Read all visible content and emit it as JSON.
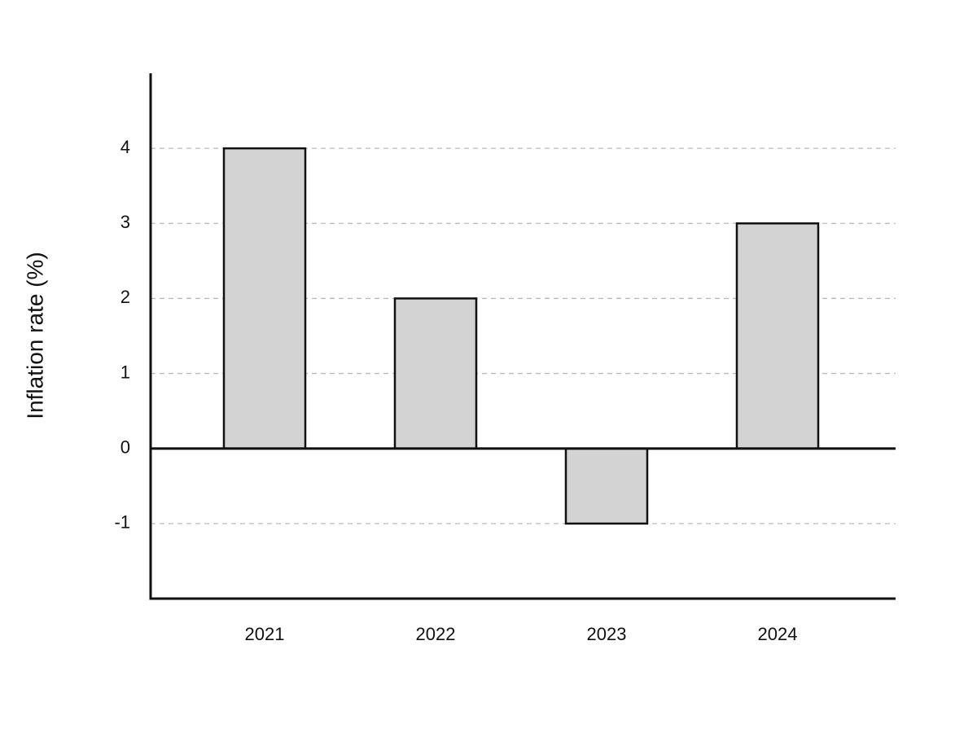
{
  "chart_data": {
    "type": "bar",
    "y_label": "Inflation rate (%)",
    "categories": [
      "2021",
      "2022",
      "2023",
      "2024"
    ],
    "values": [
      4,
      2,
      -1,
      3
    ],
    "color": "#d3d3d3",
    "edgecolor": "#111111",
    "ylim": [
      -2,
      5
    ],
    "yticks": [
      -1,
      0,
      1,
      2,
      3,
      4
    ],
    "grid": true
  }
}
